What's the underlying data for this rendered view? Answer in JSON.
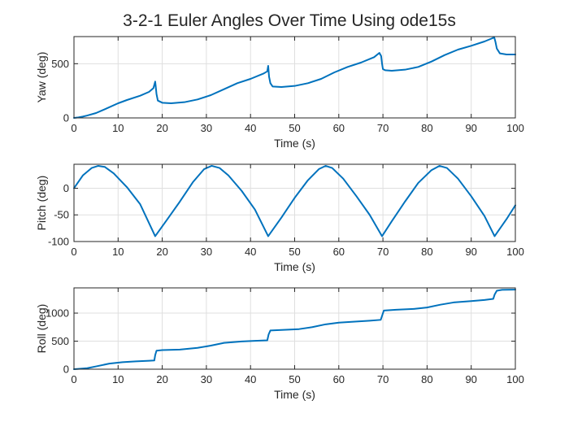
{
  "chart_data": [
    {
      "type": "line",
      "title": "3-2-1 Euler Angles Over Time Using ode15s",
      "xlabel": "Time (s)",
      "ylabel": "Yaw (deg)",
      "xlim": [
        0,
        100
      ],
      "ylim": [
        0,
        750
      ],
      "xticks": [
        0,
        10,
        20,
        30,
        40,
        50,
        60,
        70,
        80,
        90,
        100
      ],
      "yticks": [
        0,
        500
      ],
      "grid": true,
      "color": "#0072BD",
      "series": [
        {
          "x": [
            0,
            1,
            2,
            3,
            5,
            7,
            10,
            12,
            15,
            17,
            18.0,
            18.4,
            18.5,
            18.7,
            19,
            20,
            22,
            25,
            28,
            31,
            34,
            37,
            40,
            43,
            43.8,
            44.0,
            44.2,
            44.5,
            45,
            47,
            50,
            53,
            56,
            59,
            62,
            65,
            68,
            69.2,
            69.6,
            69.8,
            70.0,
            70.5,
            72,
            75,
            78,
            81,
            84,
            87,
            90,
            93,
            94.8,
            95.2,
            95.5,
            95.8,
            96.5,
            98,
            100
          ],
          "y": [
            0,
            5,
            12,
            22,
            45,
            80,
            135,
            165,
            205,
            240,
            275,
            335,
            300,
            220,
            160,
            140,
            135,
            145,
            170,
            210,
            265,
            320,
            360,
            410,
            430,
            480,
            380,
            320,
            290,
            285,
            295,
            320,
            360,
            420,
            470,
            510,
            560,
            600,
            570,
            500,
            450,
            440,
            435,
            445,
            470,
            520,
            580,
            630,
            665,
            705,
            735,
            745,
            700,
            640,
            595,
            585,
            585
          ]
        }
      ]
    },
    {
      "type": "line",
      "title": "",
      "xlabel": "Time (s)",
      "ylabel": "Pitch (deg)",
      "xlim": [
        0,
        100
      ],
      "ylim": [
        -100,
        45
      ],
      "xticks": [
        0,
        10,
        20,
        30,
        40,
        50,
        60,
        70,
        80,
        90,
        100
      ],
      "yticks": [
        -100,
        -50,
        0
      ],
      "grid": true,
      "color": "#0072BD",
      "series": [
        {
          "x": [
            0,
            2,
            4,
            5.5,
            7,
            9,
            12,
            15,
            18.4,
            21,
            24,
            27,
            29.5,
            31.2,
            33,
            35,
            38,
            41,
            44.0,
            47,
            50,
            53,
            55.5,
            57.0,
            58.5,
            61,
            64,
            67,
            69.8,
            72,
            75,
            78,
            81,
            82.8,
            84.5,
            87,
            90,
            93,
            95.3,
            98,
            100
          ],
          "y": [
            0,
            24,
            38,
            42,
            40,
            28,
            2,
            -30,
            -90,
            -60,
            -25,
            12,
            36,
            42,
            38,
            24,
            -5,
            -40,
            -90,
            -55,
            -18,
            15,
            36,
            42,
            38,
            18,
            -15,
            -50,
            -90,
            -62,
            -25,
            10,
            34,
            42,
            38,
            18,
            -15,
            -52,
            -90,
            -58,
            -32
          ]
        }
      ]
    },
    {
      "type": "line",
      "title": "",
      "xlabel": "Time (s)",
      "ylabel": "Roll (deg)",
      "xlim": [
        0,
        100
      ],
      "ylim": [
        0,
        1450
      ],
      "xticks": [
        0,
        10,
        20,
        30,
        40,
        50,
        60,
        70,
        80,
        90,
        100
      ],
      "yticks": [
        0,
        500,
        1000
      ],
      "grid": true,
      "color": "#0072BD",
      "series": [
        {
          "x": [
            0,
            1,
            3,
            5,
            8,
            11,
            14,
            17,
            18.2,
            18.4,
            18.7,
            20,
            24,
            28,
            31,
            34,
            38,
            41,
            43.8,
            44.1,
            44.5,
            47,
            51,
            54,
            57,
            60,
            64,
            67,
            69.5,
            69.8,
            70.2,
            73,
            77,
            80,
            83,
            86,
            90,
            93,
            95.0,
            95.3,
            95.8,
            97,
            100
          ],
          "y": [
            0,
            5,
            18,
            50,
            100,
            125,
            140,
            150,
            155,
            250,
            330,
            340,
            350,
            380,
            420,
            470,
            495,
            505,
            515,
            620,
            690,
            700,
            715,
            750,
            800,
            830,
            850,
            865,
            880,
            950,
            1045,
            1060,
            1075,
            1100,
            1150,
            1190,
            1215,
            1235,
            1255,
            1330,
            1400,
            1415,
            1420
          ]
        }
      ]
    }
  ]
}
